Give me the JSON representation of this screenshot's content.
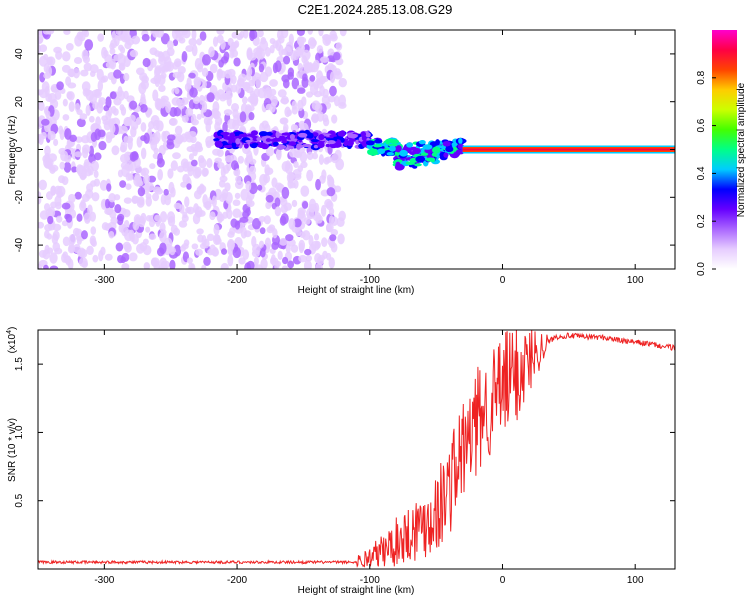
{
  "title": "C2E1.2024.285.13.08.G29",
  "colors": {
    "snr_line": "#ee2222",
    "axis": "#000000",
    "colorbar": [
      "#ffffff",
      "#e6ccff",
      "#aa66ff",
      "#6600ff",
      "#0000ff",
      "#00ccff",
      "#00ff88",
      "#44ff00",
      "#ccff00",
      "#ffcc00",
      "#ff4400",
      "#ff0044",
      "#ff00cc"
    ]
  },
  "chart_data": [
    {
      "type": "heatmap",
      "title": "",
      "xlabel": "Height of straight line (km)",
      "ylabel": "Frequency (Hz)",
      "xlim": [
        -350,
        130
      ],
      "ylim": [
        -50,
        50
      ],
      "x_ticks": [
        -300,
        -200,
        -100,
        0,
        100
      ],
      "x_tick_labels": [
        "-300",
        "-200",
        "-100",
        "0",
        "100"
      ],
      "y_ticks": [
        -40,
        -20,
        0,
        20,
        40
      ],
      "y_tick_labels": [
        "-40",
        "-20",
        "0",
        "20",
        "40"
      ],
      "colorbar": {
        "label": "Normalized spectral amplitude",
        "range": [
          0,
          1
        ],
        "ticks": [
          0.0,
          0.2,
          0.4,
          0.6,
          0.8
        ],
        "tick_labels": [
          "0.0",
          "0.2",
          "0.4",
          "0.6",
          "0.8"
        ]
      },
      "features": [
        {
          "name": "noise",
          "x_range": [
            -350,
            -120
          ],
          "freq_range": [
            -50,
            50
          ],
          "amplitude": 0.12
        },
        {
          "name": "signal_band_weak",
          "x_range": [
            -215,
            -100
          ],
          "freq_center": 4,
          "amplitude": 0.3
        },
        {
          "name": "signal_band_mid",
          "x_range": [
            -100,
            -30
          ],
          "freq_center": 1,
          "amplitude": 0.45
        },
        {
          "name": "signal_band_strong",
          "x_range": [
            -30,
            130
          ],
          "freq_center": 0,
          "amplitude": 0.95
        }
      ]
    },
    {
      "type": "line",
      "title": "",
      "xlabel": "Height of straight line (km)",
      "ylabel": "SNR (10 * v/v)",
      "multiplier_label": "(x10",
      "multiplier_exp": "4",
      "multiplier_close": ")",
      "xlim": [
        -350,
        130
      ],
      "ylim": [
        0,
        1.75
      ],
      "x_ticks": [
        -300,
        -200,
        -100,
        0,
        100
      ],
      "x_tick_labels": [
        "-300",
        "-200",
        "-100",
        "0",
        "100"
      ],
      "y_ticks": [
        0.5,
        1.0,
        1.5
      ],
      "y_tick_labels": [
        "0.5",
        "1.0",
        "1.5"
      ],
      "series": [
        {
          "name": "SNR",
          "x": [
            -350,
            -300,
            -250,
            -200,
            -150,
            -110,
            -100,
            -90,
            -80,
            -70,
            -60,
            -50,
            -45,
            -40,
            -35,
            -30,
            -25,
            -20,
            -15,
            -10,
            -5,
            0,
            5,
            10,
            15,
            20,
            25,
            30,
            40,
            50,
            60,
            70,
            80,
            90,
            100,
            110,
            120,
            130
          ],
          "values": [
            0.05,
            0.05,
            0.05,
            0.05,
            0.05,
            0.05,
            0.08,
            0.13,
            0.2,
            0.27,
            0.33,
            0.42,
            0.5,
            0.6,
            0.75,
            0.85,
            0.95,
            1.05,
            1.15,
            1.2,
            1.27,
            1.32,
            1.38,
            1.43,
            1.47,
            1.53,
            1.58,
            1.63,
            1.7,
            1.71,
            1.7,
            1.7,
            1.69,
            1.67,
            1.66,
            1.65,
            1.63,
            1.62
          ]
        }
      ]
    }
  ]
}
